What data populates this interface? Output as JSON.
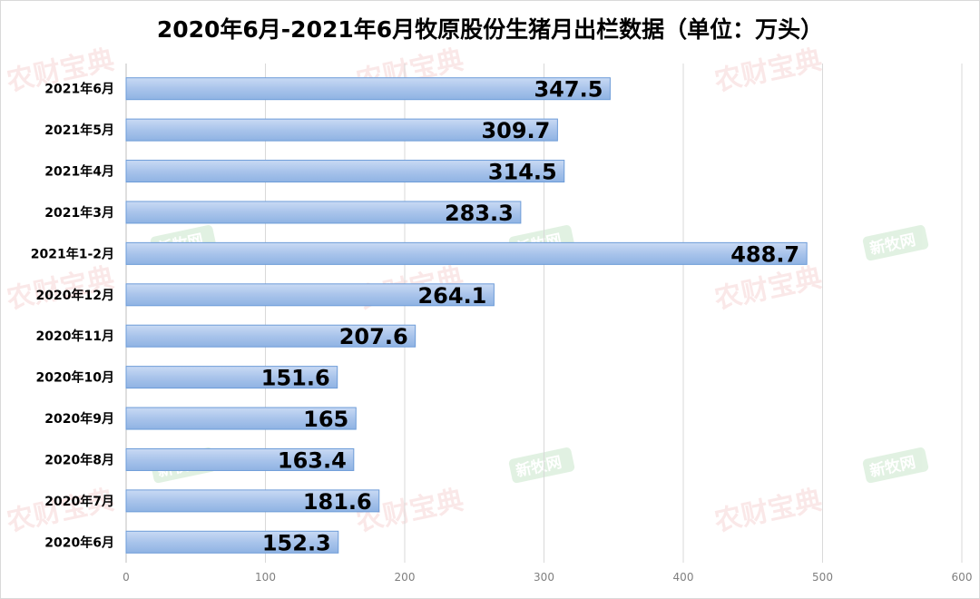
{
  "chart_data": {
    "type": "bar",
    "orientation": "horizontal",
    "title": "2020年6月-2021年6月牧原股份生猪月出栏数据（单位：万头）",
    "categories": [
      "2021年6月",
      "2021年5月",
      "2021年4月",
      "2021年3月",
      "2021年1-2月",
      "2020年12月",
      "2020年11月",
      "2020年10月",
      "2020年9月",
      "2020年8月",
      "2020年7月",
      "2020年6月"
    ],
    "values": [
      347.5,
      309.7,
      314.5,
      283.3,
      488.7,
      264.1,
      207.6,
      151.6,
      165,
      163.4,
      181.6,
      152.3
    ],
    "value_labels": [
      "347.5",
      "309.7",
      "314.5",
      "283.3",
      "488.7",
      "264.1",
      "207.6",
      "151.6",
      "165",
      "163.4",
      "181.6",
      "152.3"
    ],
    "xlim": [
      0,
      600
    ],
    "xticks": [
      "0",
      "100",
      "200",
      "300",
      "400",
      "500",
      "600"
    ],
    "grid": "vertical",
    "bar_color": "#a9c4eb",
    "bar_edge_color": "#6d9cd8"
  },
  "watermarks": {
    "red_text": "农财宝典",
    "green_text": "新牧网",
    "red_color": "#e06666",
    "green_color": "#7bc47f"
  }
}
